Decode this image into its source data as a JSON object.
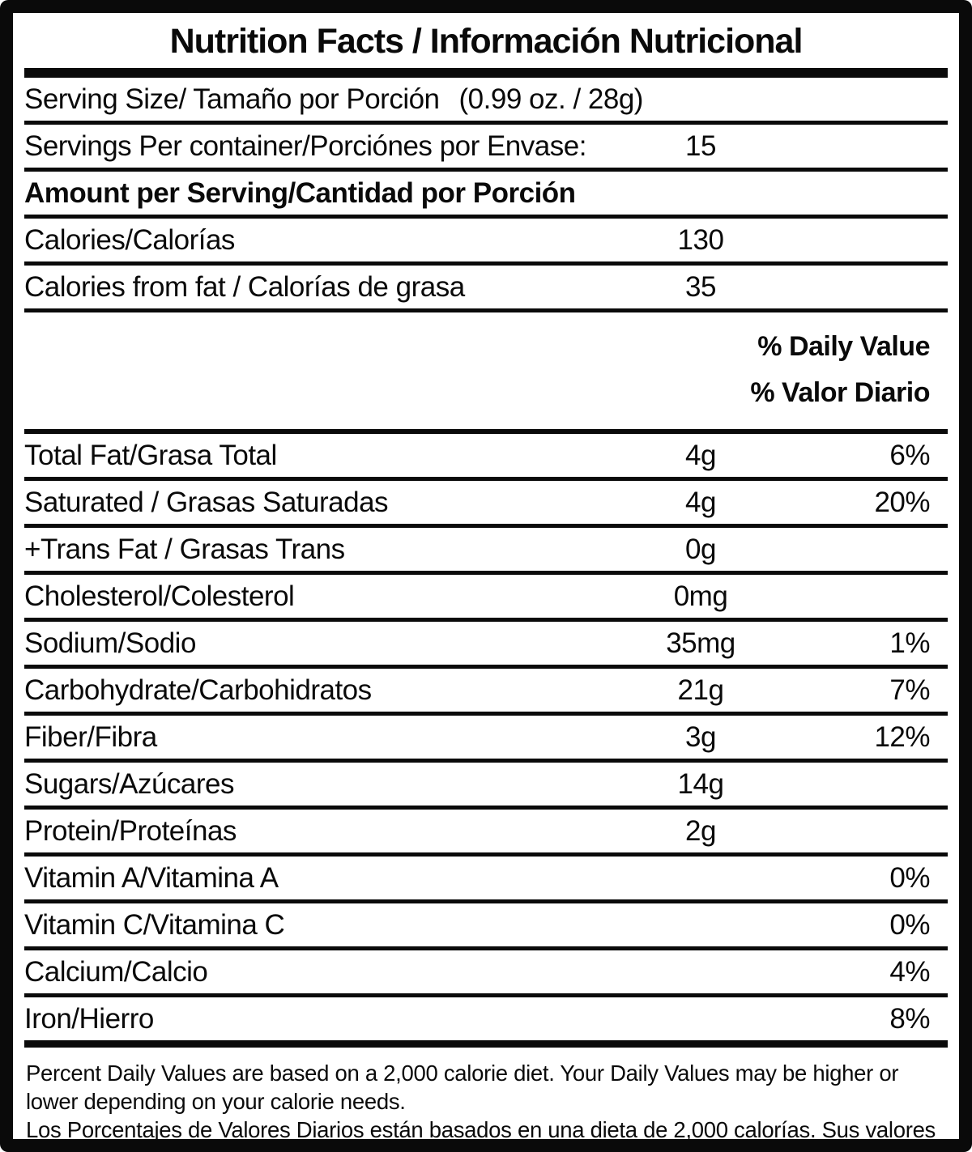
{
  "colors": {
    "ink": "#0a0a0a",
    "paper": "#ffffff"
  },
  "label": {
    "title": "Nutrition Facts / Información Nutricional",
    "serving_size": {
      "label": "Serving Size/ Tamaño por Porción",
      "value": "(0.99 oz. / 28g)"
    },
    "servings_per_container": {
      "label": "Servings Per container/Porciónes por Envase:",
      "value": "15"
    },
    "amount_per_serving_header": "Amount per Serving/Cantidad por Porción",
    "calories": {
      "label": "Calories/Calorías",
      "value": "130"
    },
    "calories_from_fat": {
      "label": "Calories from fat / Calorías de grasa",
      "value": "35"
    },
    "daily_value_header": {
      "line1": "% Daily Value",
      "line2": "% Valor Diario"
    },
    "nutrients": [
      {
        "label": "Total Fat/Grasa Total",
        "amount": "4g",
        "dv": "6%"
      },
      {
        "label": "Saturated / Grasas Saturadas",
        "amount": "4g",
        "dv": "20%"
      },
      {
        "label": "+Trans Fat / Grasas Trans",
        "amount": "0g",
        "dv": ""
      },
      {
        "label": "Cholesterol/Colesterol",
        "amount": "0mg",
        "dv": ""
      },
      {
        "label": "Sodium/Sodio",
        "amount": "35mg",
        "dv": "1%"
      },
      {
        "label": "Carbohydrate/Carbohidratos",
        "amount": "21g",
        "dv": "7%"
      },
      {
        "label": "Fiber/Fibra",
        "amount": "3g",
        "dv": "12%"
      },
      {
        "label": "Sugars/Azúcares",
        "amount": "14g",
        "dv": ""
      },
      {
        "label": "Protein/Proteínas",
        "amount": "2g",
        "dv": ""
      },
      {
        "label": "Vitamin A/Vitamina A",
        "amount": "",
        "dv": "0%"
      },
      {
        "label": "Vitamin C/Vitamina C",
        "amount": "",
        "dv": "0%"
      },
      {
        "label": "Calcium/Calcio",
        "amount": "",
        "dv": "4%"
      },
      {
        "label": "Iron/Hierro",
        "amount": "",
        "dv": "8%"
      }
    ],
    "footnote_en": "Percent Daily Values are based on a 2,000 calorie diet. Your Daily Values may be higher or lower depending on your calorie needs.",
    "footnote_es": "Los Porcentajes de Valores Diarios están basados en una dieta de 2,000 calorías. Sus valores diarios pueden ser mayores o menores dependiendo de sus necesidades calóricas"
  }
}
